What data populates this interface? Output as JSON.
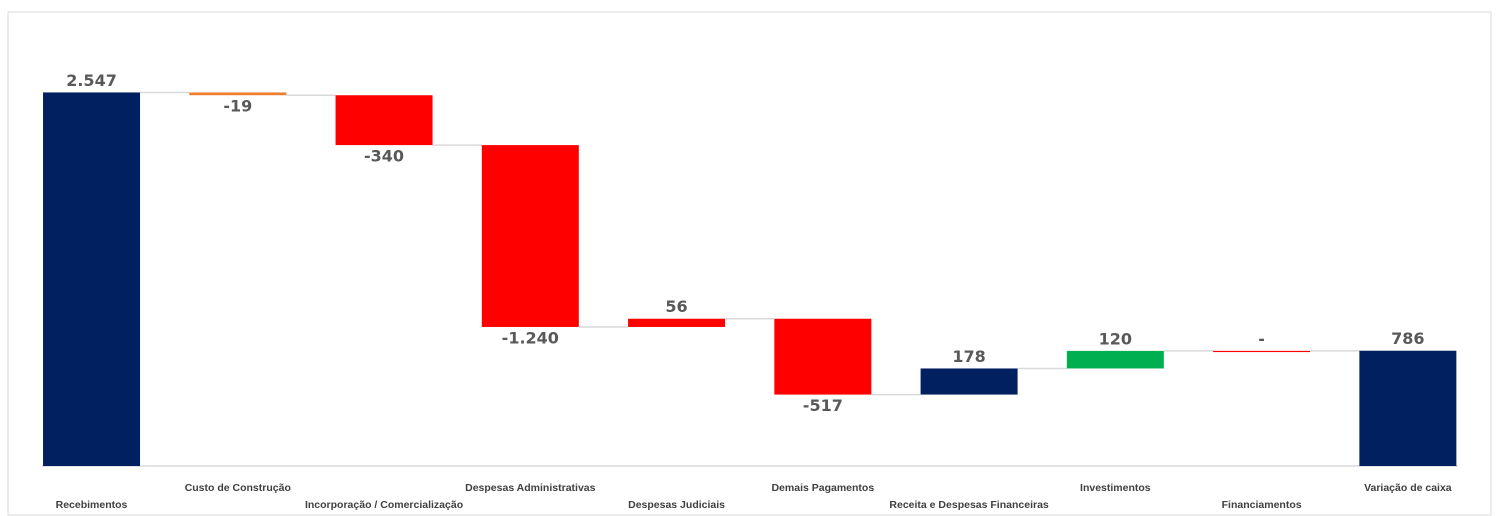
{
  "chart_data": {
    "type": "waterfall",
    "categories": [
      "Recebimentos",
      "Custo de Construção",
      "Incorporação / Comercialização",
      "Despesas Administrativas",
      "Despesas Judiciais",
      "Demais Pagamentos",
      "Receita e Despesas Financeiras",
      "Investimentos",
      "Financiamentos",
      "Variação de caixa"
    ],
    "values": [
      2547,
      -19,
      -340,
      -1240,
      56,
      -517,
      178,
      120,
      0,
      786
    ],
    "value_labels": [
      "2.547",
      "-19",
      "-340",
      "-1.240",
      "56",
      "-517",
      "178",
      "120",
      "-",
      "786"
    ],
    "is_total": [
      true,
      false,
      false,
      false,
      false,
      false,
      false,
      false,
      false,
      true
    ],
    "colors": [
      "#002060",
      "#ed7d31",
      "#ff0000",
      "#ff0000",
      "#ff0000",
      "#ff0000",
      "#002060",
      "#00b050",
      "#ff0000",
      "#002060"
    ],
    "ylim": [
      0,
      3000
    ]
  }
}
